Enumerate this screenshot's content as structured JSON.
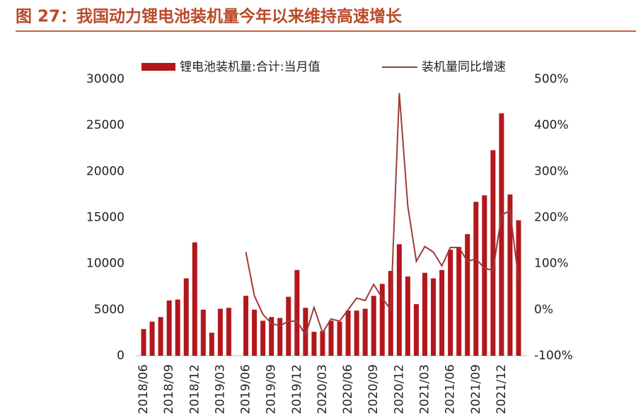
{
  "chart_data": {
    "type": "bar_line",
    "title": "图 27：我国动力锂电池装机量今年以来维持高速增长",
    "categories": [
      "2018/06",
      null,
      null,
      "2018/09",
      null,
      null,
      "2018/12",
      null,
      null,
      "2019/03",
      null,
      null,
      "2019/06",
      null,
      null,
      "2019/09",
      null,
      null,
      "2019/12",
      null,
      null,
      "2020/03",
      null,
      null,
      "2020/06",
      null,
      null,
      "2020/09",
      null,
      null,
      "2020/12",
      null,
      null,
      "2021/03",
      null,
      null,
      "2021/06",
      null,
      null,
      "2021/09",
      null,
      null,
      "2021/12",
      null,
      null
    ],
    "series": [
      {
        "name": "锂电池装机量:合计:当月值",
        "color": "#b2171c",
        "kind": "bar",
        "values": [
          2900,
          3700,
          4200,
          6000,
          6100,
          8400,
          12300,
          5000,
          2500,
          5100,
          5200,
          null,
          6500,
          5000,
          3800,
          4200,
          4100,
          6400,
          9300,
          5200,
          2600,
          2700,
          3800,
          3700,
          4900,
          4900,
          5100,
          6500,
          7800,
          9200,
          12100,
          8600,
          5600,
          9000,
          8400,
          9300,
          11500,
          11800,
          13200,
          16700,
          17400,
          22300,
          26300,
          17500,
          14700
        ]
      },
      {
        "name": "装机量同比增速",
        "color": "#9c3b3b",
        "kind": "line",
        "axis": "y2",
        "values": [
          null,
          null,
          null,
          null,
          null,
          null,
          null,
          null,
          null,
          null,
          null,
          null,
          125,
          30,
          -10,
          -30,
          -35,
          -25,
          -25,
          -55,
          5,
          -50,
          -20,
          -25,
          0,
          25,
          20,
          55,
          25,
          0,
          470,
          225,
          105,
          137,
          125,
          95,
          135,
          135,
          105,
          110,
          90,
          85,
          205,
          215,
          65
        ]
      }
    ],
    "ylim": [
      0,
      30000
    ],
    "yticks": [
      0,
      5000,
      10000,
      15000,
      20000,
      25000,
      30000
    ],
    "y2lim": [
      -100,
      500
    ],
    "y2ticks": [
      {
        "value": -100,
        "label": "-100%"
      },
      {
        "value": 0,
        "label": "0%"
      },
      {
        "value": 100,
        "label": "100%"
      },
      {
        "value": 200,
        "label": "200%"
      },
      {
        "value": 300,
        "label": "300%"
      },
      {
        "value": 400,
        "label": "400%"
      },
      {
        "value": 500,
        "label": "500%"
      }
    ],
    "grid": false
  }
}
